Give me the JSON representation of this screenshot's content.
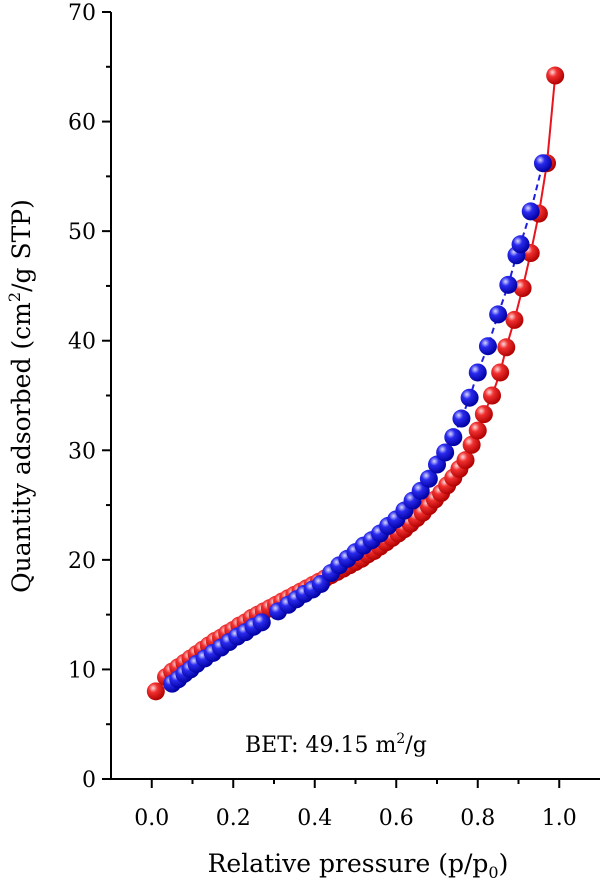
{
  "chart_data": {
    "type": "scatter",
    "xlabel": "Relative pressure (p/p",
    "xlabel_sub": "0",
    "xlabel_end": ")",
    "ylabel": "Quantity adsorbed (cm",
    "ylabel_sup": "2",
    "ylabel_end": "/g STP)",
    "xlim": [
      -0.1,
      1.1
    ],
    "ylim": [
      0,
      70
    ],
    "xticks": [
      "0.0",
      "0.2",
      "0.4",
      "0.6",
      "0.8",
      "1.0"
    ],
    "yticks": [
      "0",
      "10",
      "20",
      "30",
      "40",
      "50",
      "60",
      "70"
    ],
    "grid": false,
    "annotation": {
      "text": "BET: 49.15 m",
      "sup": "2",
      "end": "/g"
    },
    "series": [
      {
        "color": "#e8141e",
        "line_style": "solid",
        "x": [
          0.01,
          0.035,
          0.05,
          0.065,
          0.08,
          0.095,
          0.11,
          0.125,
          0.14,
          0.155,
          0.17,
          0.185,
          0.2,
          0.215,
          0.23,
          0.245,
          0.26,
          0.275,
          0.29,
          0.305,
          0.32,
          0.335,
          0.35,
          0.365,
          0.38,
          0.395,
          0.41,
          0.425,
          0.44,
          0.455,
          0.47,
          0.485,
          0.5,
          0.515,
          0.53,
          0.545,
          0.56,
          0.575,
          0.59,
          0.605,
          0.62,
          0.635,
          0.65,
          0.665,
          0.68,
          0.695,
          0.71,
          0.725,
          0.74,
          0.755,
          0.77,
          0.785,
          0.8,
          0.815,
          0.835,
          0.855,
          0.87,
          0.89,
          0.91,
          0.93,
          0.95,
          0.97,
          0.99
        ],
        "y": [
          8.0,
          9.3,
          9.8,
          10.2,
          10.6,
          11.0,
          11.4,
          11.8,
          12.2,
          12.6,
          12.9,
          13.3,
          13.6,
          14.0,
          14.3,
          14.7,
          15.0,
          15.3,
          15.6,
          15.9,
          16.2,
          16.5,
          16.8,
          17.1,
          17.4,
          17.7,
          18.0,
          18.3,
          18.6,
          18.9,
          19.2,
          19.5,
          19.8,
          20.1,
          20.5,
          20.8,
          21.2,
          21.6,
          22.0,
          22.4,
          22.8,
          23.3,
          23.8,
          24.3,
          24.9,
          25.5,
          26.1,
          26.8,
          27.5,
          28.3,
          29.1,
          30.5,
          31.8,
          33.3,
          35.0,
          37.1,
          39.4,
          41.9,
          44.8,
          48.0,
          51.6,
          56.2,
          64.2
        ]
      },
      {
        "color": "#1e1ee0",
        "line_style": "dashed",
        "x": [
          0.05,
          0.065,
          0.08,
          0.095,
          0.11,
          0.13,
          0.15,
          0.17,
          0.19,
          0.21,
          0.23,
          0.25,
          0.27,
          0.31,
          0.335,
          0.355,
          0.375,
          0.395,
          0.415,
          0.44,
          0.46,
          0.48,
          0.5,
          0.52,
          0.54,
          0.56,
          0.58,
          0.6,
          0.62,
          0.64,
          0.66,
          0.68,
          0.7,
          0.72,
          0.74,
          0.76,
          0.78,
          0.8,
          0.825,
          0.85,
          0.875,
          0.895,
          0.905,
          0.93,
          0.96
        ],
        "y": [
          8.7,
          9.1,
          9.6,
          10.0,
          10.5,
          11.0,
          11.5,
          12.0,
          12.5,
          13.0,
          13.4,
          13.9,
          14.3,
          15.3,
          15.9,
          16.4,
          16.9,
          17.3,
          17.8,
          18.8,
          19.5,
          20.1,
          20.7,
          21.3,
          21.8,
          22.4,
          23.1,
          23.7,
          24.5,
          25.4,
          26.3,
          27.4,
          28.7,
          29.8,
          31.2,
          32.9,
          34.8,
          37.1,
          39.5,
          42.4,
          45.1,
          47.8,
          48.8,
          51.8,
          56.2
        ]
      }
    ]
  }
}
